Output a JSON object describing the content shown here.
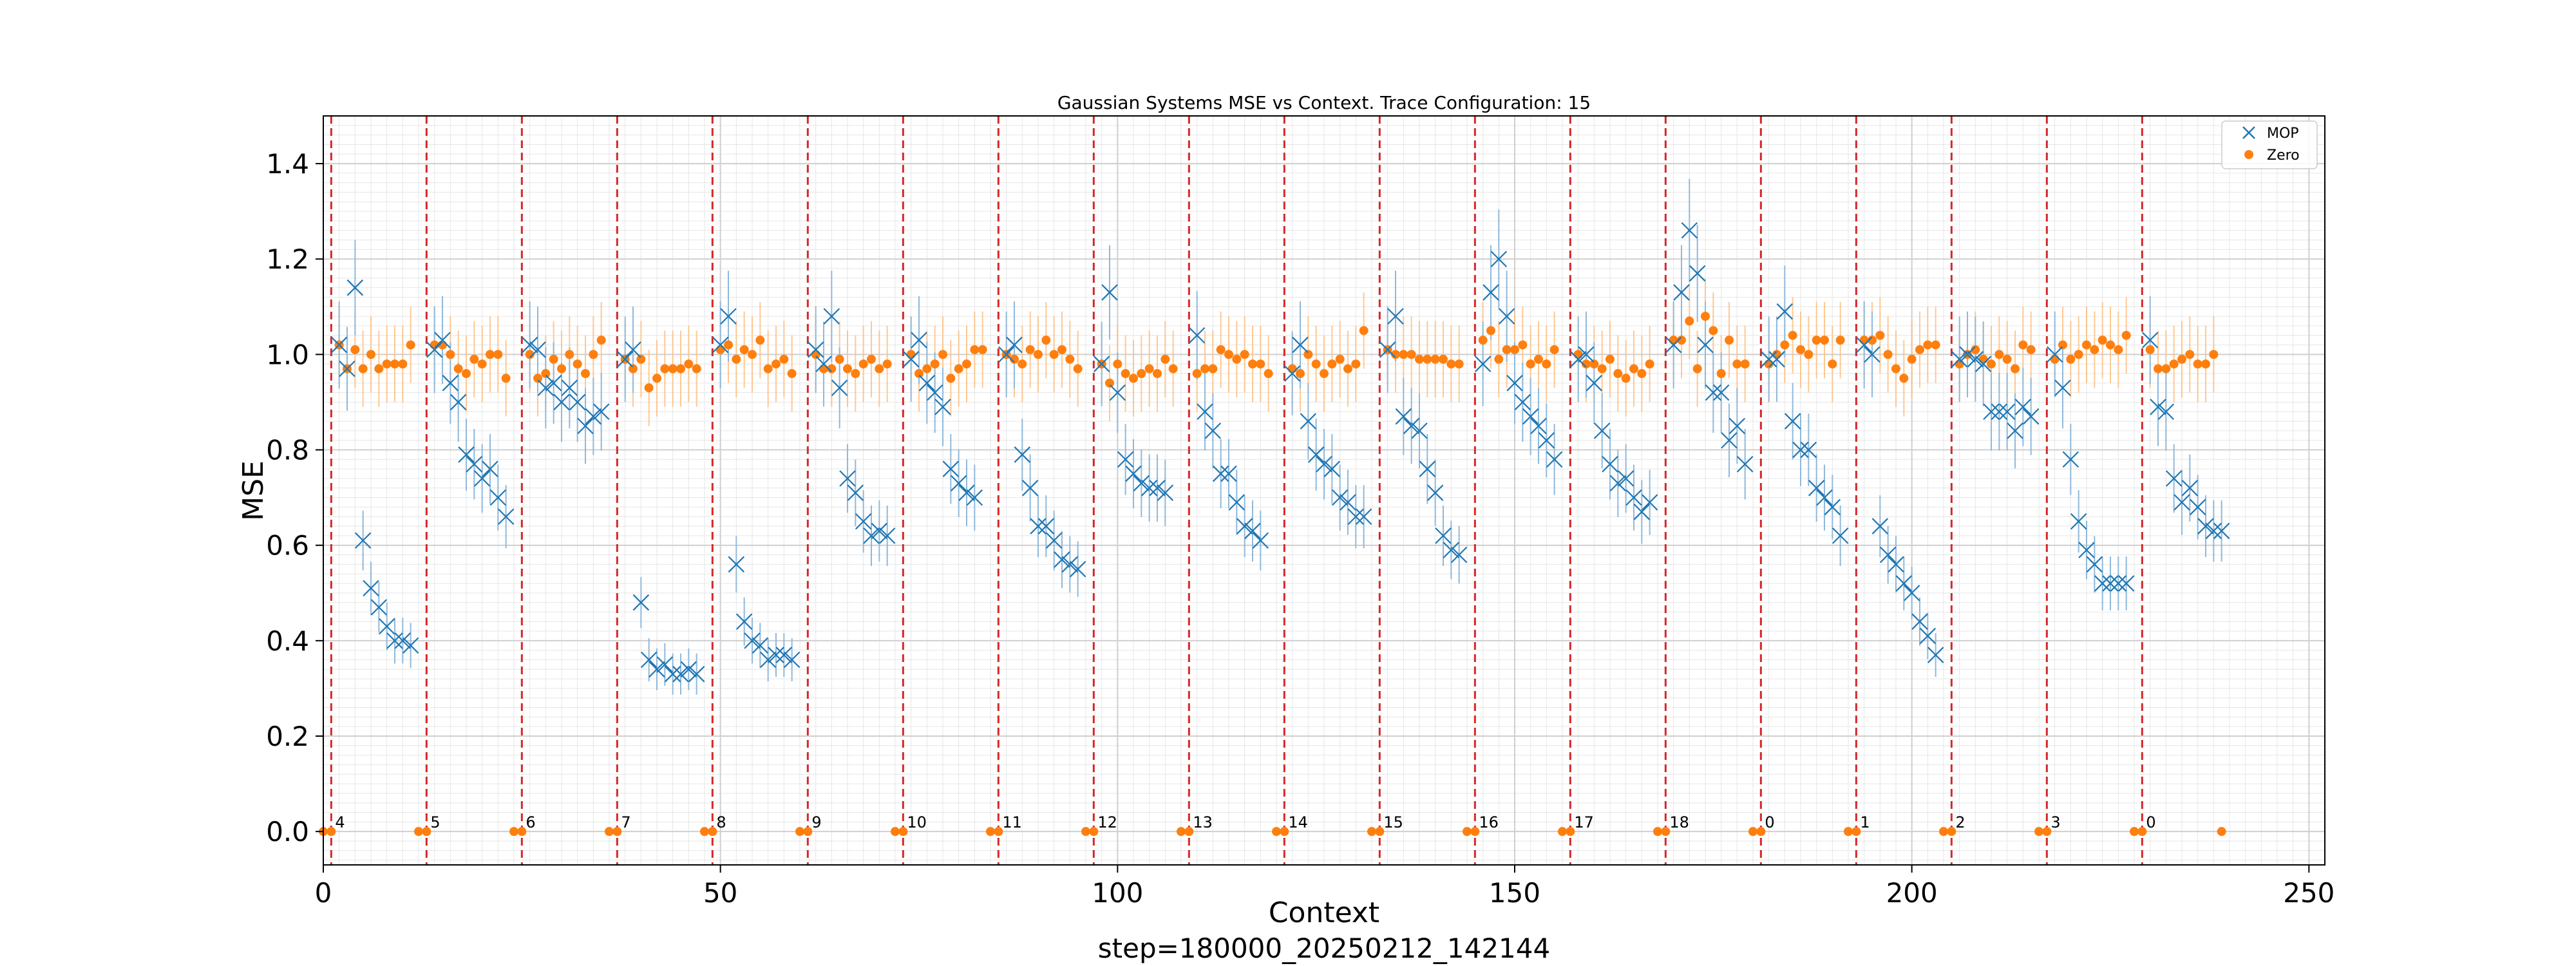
{
  "chart_data": {
    "type": "scatter",
    "title": "Gaussian Systems MSE vs Context. Trace Configuration: 15",
    "xlabel": "Context",
    "ylabel": "MSE",
    "footer": "step=180000_20250212_142144",
    "xlim": [
      0,
      252
    ],
    "ylim": [
      -0.07,
      1.5
    ],
    "xticks": [
      0,
      50,
      100,
      150,
      200,
      250
    ],
    "yticks": [
      0.0,
      0.2,
      0.4,
      0.6,
      0.8,
      1.0,
      1.2,
      1.4
    ],
    "grid": true,
    "legend_position": "top-right",
    "colors": {
      "MOP": "#1f77b4",
      "Zero": "#ff7f0e",
      "boundary": "#d62728"
    },
    "boundaries": [
      1,
      13,
      25,
      37,
      49,
      61,
      73,
      85,
      97,
      109,
      121,
      133,
      145,
      157,
      169,
      181,
      193,
      205,
      217,
      229
    ],
    "segment_labels": [
      "4",
      "5",
      "6",
      "7",
      "8",
      "9",
      "10",
      "11",
      "12",
      "13",
      "14",
      "15",
      "16",
      "17",
      "18",
      "0",
      "1",
      "2",
      "3",
      "0"
    ],
    "series": [
      {
        "name": "MOP",
        "marker": "x",
        "segments": [
          [
            1.02,
            0.97,
            1.14,
            0.61,
            0.51,
            0.47,
            0.43,
            0.4,
            0.4,
            0.39
          ],
          [
            1.01,
            1.03,
            0.94,
            0.9,
            0.79,
            0.77,
            0.74,
            0.76,
            0.7,
            0.66
          ],
          [
            1.02,
            1.01,
            0.93,
            0.94,
            0.9,
            0.93,
            0.9,
            0.85,
            0.87,
            0.88
          ],
          [
            0.99,
            1.01,
            0.48,
            0.36,
            0.34,
            0.35,
            0.33,
            0.33,
            0.34,
            0.33
          ],
          [
            1.02,
            1.08,
            0.56,
            0.44,
            0.4,
            0.39,
            0.36,
            0.37,
            0.37,
            0.36
          ],
          [
            1.01,
            0.98,
            1.08,
            0.93,
            0.74,
            0.71,
            0.65,
            0.62,
            0.63,
            0.62
          ],
          [
            0.99,
            1.03,
            0.94,
            0.92,
            0.89,
            0.76,
            0.73,
            0.71,
            0.7
          ],
          [
            1.0,
            1.02,
            0.79,
            0.72,
            0.64,
            0.64,
            0.61,
            0.57,
            0.56,
            0.55
          ],
          [
            0.98,
            1.13,
            0.92,
            0.78,
            0.75,
            0.73,
            0.72,
            0.72,
            0.71
          ],
          [
            1.04,
            0.88,
            0.84,
            0.75,
            0.75,
            0.69,
            0.64,
            0.63,
            0.61
          ],
          [
            0.96,
            1.02,
            0.86,
            0.79,
            0.77,
            0.76,
            0.7,
            0.69,
            0.66,
            0.66
          ],
          [
            1.01,
            1.08,
            0.87,
            0.85,
            0.84,
            0.76,
            0.71,
            0.62,
            0.59,
            0.58
          ],
          [
            0.98,
            1.13,
            1.2,
            1.08,
            0.94,
            0.9,
            0.87,
            0.85,
            0.82,
            0.78
          ],
          [
            0.99,
            1.0,
            0.94,
            0.84,
            0.77,
            0.73,
            0.74,
            0.7,
            0.67,
            0.69
          ],
          [
            1.02,
            1.13,
            1.26,
            1.17,
            1.02,
            0.92,
            0.92,
            0.82,
            0.85,
            0.77
          ],
          [
            0.99,
            0.99,
            1.09,
            0.86,
            0.8,
            0.8,
            0.72,
            0.7,
            0.68,
            0.62
          ],
          [
            1.02,
            1.0,
            0.64,
            0.58,
            0.56,
            0.52,
            0.5,
            0.44,
            0.41,
            0.37
          ],
          [
            0.99,
            1.0,
            0.99,
            0.98,
            0.88,
            0.88,
            0.88,
            0.84,
            0.89,
            0.87
          ],
          [
            1.0,
            0.93,
            0.78,
            0.65,
            0.59,
            0.56,
            0.52,
            0.52,
            0.52,
            0.52
          ],
          [
            1.03,
            0.89,
            0.88,
            0.74,
            0.69,
            0.72,
            0.68,
            0.64,
            0.63,
            0.63
          ]
        ]
      },
      {
        "name": "Zero",
        "marker": "o",
        "values": [
          0.0,
          0.0,
          1.02,
          0.97,
          1.01,
          0.97,
          1.0,
          0.97,
          0.98,
          0.98,
          0.98,
          1.02,
          0.0,
          0.0,
          1.02,
          1.02,
          1.0,
          0.97,
          0.96,
          0.99,
          0.98,
          1.0,
          1.0,
          0.95,
          0.0,
          0.0,
          1.0,
          0.95,
          0.96,
          0.99,
          0.97,
          1.0,
          0.98,
          0.96,
          1.0,
          1.03,
          0.0,
          0.0,
          0.99,
          0.97,
          0.99,
          0.93,
          0.95,
          0.97,
          0.97,
          0.97,
          0.98,
          0.97,
          0.0,
          0.0,
          1.01,
          1.02,
          0.99,
          1.01,
          1.0,
          1.03,
          0.97,
          0.98,
          0.99,
          0.96,
          0.0,
          0.0,
          1.0,
          0.97,
          0.97,
          0.99,
          0.97,
          0.96,
          0.98,
          0.99,
          0.97,
          0.98,
          0.0,
          0.0,
          1.0,
          0.96,
          0.97,
          0.98,
          1.0,
          0.95,
          0.97,
          0.98,
          1.01,
          1.01,
          0.0,
          0.0,
          1.0,
          0.99,
          0.98,
          1.01,
          1.0,
          1.03,
          1.0,
          1.01,
          0.99,
          0.97,
          0.0,
          0.0,
          0.98,
          0.94,
          0.98,
          0.96,
          0.95,
          0.96,
          0.97,
          0.96,
          0.99,
          0.97,
          0.0,
          0.0,
          0.96,
          0.97,
          0.97,
          1.01,
          1.0,
          0.99,
          1.0,
          0.98,
          0.98,
          0.96,
          0.0,
          0.0,
          0.97,
          0.96,
          1.0,
          0.98,
          0.96,
          0.98,
          0.99,
          0.97,
          0.98,
          1.05,
          0.0,
          0.0,
          1.01,
          1.0,
          1.0,
          1.0,
          0.99,
          0.99,
          0.99,
          0.99,
          0.98,
          0.98,
          0.0,
          0.0,
          1.03,
          1.05,
          0.99,
          1.01,
          1.01,
          1.02,
          0.98,
          0.99,
          0.98,
          1.01,
          0.0,
          0.0,
          1.0,
          0.98,
          0.98,
          0.97,
          0.99,
          0.96,
          0.95,
          0.97,
          0.96,
          0.98,
          0.0,
          0.0,
          1.03,
          1.03,
          1.07,
          0.97,
          1.08,
          1.05,
          0.96,
          1.03,
          0.98,
          0.98,
          0.0,
          0.0,
          0.98,
          1.0,
          1.02,
          1.04,
          1.01,
          1.0,
          1.03,
          1.03,
          0.98,
          1.03,
          0.0,
          0.0,
          1.03,
          1.03,
          1.04,
          1.0,
          0.97,
          0.95,
          0.99,
          1.01,
          1.02,
          1.02,
          0.0,
          0.0,
          0.98,
          1.0,
          1.01,
          0.99,
          0.98,
          1.0,
          0.99,
          0.97,
          1.02,
          1.01,
          0.0,
          0.0,
          0.99,
          1.02,
          0.99,
          1.0,
          1.02,
          1.01,
          1.03,
          1.02,
          1.01,
          1.04,
          0.0,
          0.0,
          1.01,
          0.97,
          0.97,
          0.98,
          0.99,
          1.0,
          0.98,
          0.98,
          1.0,
          0.0
        ]
      }
    ]
  }
}
